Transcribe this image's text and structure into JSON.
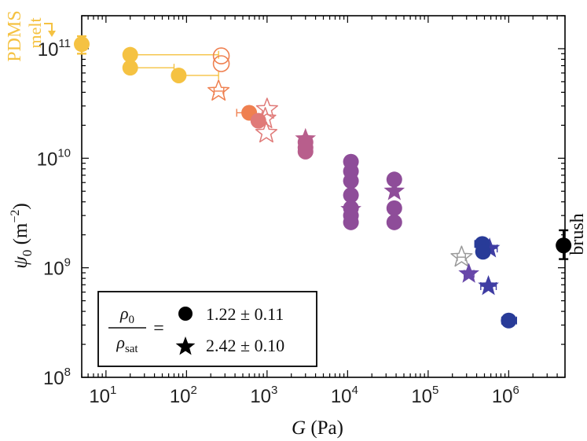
{
  "chart_data": {
    "type": "scatter",
    "x_scale": "log",
    "y_scale": "log",
    "xlim": [
      5,
      5000000
    ],
    "ylim": [
      100000000,
      200000000000
    ],
    "xlabel": {
      "var": "G",
      "unit": "(Pa)"
    },
    "ylabel": {
      "var": "ψ",
      "sub": "0",
      "unit": "(m",
      "exp": "−2",
      "close": ")"
    },
    "x_ticks": [
      {
        "base": "10",
        "exp": "1",
        "value": 10
      },
      {
        "base": "10",
        "exp": "2",
        "value": 100
      },
      {
        "base": "10",
        "exp": "3",
        "value": 1000
      },
      {
        "base": "10",
        "exp": "4",
        "value": 10000
      },
      {
        "base": "10",
        "exp": "5",
        "value": 100000
      },
      {
        "base": "10",
        "exp": "6",
        "value": 1000000
      }
    ],
    "y_ticks": [
      {
        "base": "10",
        "exp": "8",
        "value": 100000000
      },
      {
        "base": "10",
        "exp": "9",
        "value": 1000000000
      },
      {
        "base": "10",
        "exp": "10",
        "value": 10000000000
      },
      {
        "base": "10",
        "exp": "11",
        "value": 100000000000
      }
    ],
    "colors": {
      "gold": "#f5c242",
      "orange": "#ef8050",
      "salmon": "#e07a78",
      "mauve": "#b85e8c",
      "plum": "#8e4d99",
      "purple": "#6747a9",
      "indigo": "#3f3da3",
      "navy": "#283b98",
      "grey": "#999999",
      "black": "#000000"
    },
    "series": [
      {
        "name": "PDMS melt",
        "marker": "circle",
        "fill": true,
        "color": "gold",
        "points": [
          {
            "x": 5,
            "y": 110000000000,
            "yerr_lo": 90000000000,
            "yerr_hi": 130000000000
          }
        ]
      },
      {
        "name": "gold circles",
        "marker": "circle",
        "fill": true,
        "color": "gold",
        "points": [
          {
            "x": 20,
            "y": 88000000000,
            "xerr_hi": 250
          },
          {
            "x": 20,
            "y": 67000000000,
            "xerr_hi": 70
          },
          {
            "x": 80,
            "y": 57000000000,
            "xerr_hi": 250
          }
        ]
      },
      {
        "name": "open circles",
        "marker": "circle",
        "fill": false,
        "color": "orange",
        "points": [
          {
            "x": 270,
            "y": 86000000000
          },
          {
            "x": 270,
            "y": 73000000000
          }
        ]
      },
      {
        "name": "open star gold",
        "marker": "star",
        "fill": false,
        "color": "orange",
        "points": [
          {
            "x": 250,
            "y": 41000000000,
            "xerr_lo": 220,
            "xerr_hi": 290
          }
        ]
      },
      {
        "name": "orange circle",
        "marker": "circle",
        "fill": true,
        "color": "orange",
        "points": [
          {
            "x": 600,
            "y": 26000000000,
            "xerr_lo": 420,
            "xerr_hi": 650
          }
        ]
      },
      {
        "name": "salmon circles",
        "marker": "circle",
        "fill": true,
        "color": "salmon",
        "points": [
          {
            "x": 780,
            "y": 22000000000
          }
        ]
      },
      {
        "name": "salmon open stars",
        "marker": "star",
        "fill": false,
        "color": "salmon",
        "points": [
          {
            "x": 1000,
            "y": 28000000000
          },
          {
            "x": 950,
            "y": 23000000000
          },
          {
            "x": 980,
            "y": 17000000000
          }
        ]
      },
      {
        "name": "mauve circles",
        "marker": "circle",
        "fill": true,
        "color": "mauve",
        "points": [
          {
            "x": 3000,
            "y": 14000000000
          },
          {
            "x": 3000,
            "y": 12500000000
          },
          {
            "x": 3000,
            "y": 11500000000
          }
        ]
      },
      {
        "name": "mauve stars",
        "marker": "star",
        "fill": true,
        "color": "mauve",
        "points": [
          {
            "x": 3000,
            "y": 15000000000
          }
        ]
      },
      {
        "name": "plum circles",
        "marker": "circle",
        "fill": true,
        "color": "plum",
        "points": [
          {
            "x": 11000,
            "y": 9300000000
          },
          {
            "x": 11000,
            "y": 7600000000
          },
          {
            "x": 11000,
            "y": 6200000000
          },
          {
            "x": 11000,
            "y": 4600000000
          },
          {
            "x": 11000,
            "y": 3500000000
          },
          {
            "x": 11000,
            "y": 3000000000
          },
          {
            "x": 11000,
            "y": 2600000000
          },
          {
            "x": 38000,
            "y": 6400000000
          },
          {
            "x": 38000,
            "y": 3500000000
          },
          {
            "x": 38000,
            "y": 2600000000
          }
        ]
      },
      {
        "name": "plum stars",
        "marker": "star",
        "fill": true,
        "color": "plum",
        "points": [
          {
            "x": 11000,
            "y": 3400000000
          },
          {
            "x": 38000,
            "y": 5000000000
          }
        ]
      },
      {
        "name": "grey open star",
        "marker": "star",
        "fill": false,
        "color": "grey",
        "points": [
          {
            "x": 260000,
            "y": 1250000000,
            "xerr_lo": 230000,
            "xerr_hi": 290000
          }
        ]
      },
      {
        "name": "purple stars",
        "marker": "star",
        "fill": true,
        "color": "purple",
        "points": [
          {
            "x": 320000,
            "y": 880000000,
            "xerr_lo": 280000,
            "xerr_hi": 370000
          }
        ]
      },
      {
        "name": "indigo stars",
        "marker": "star",
        "fill": true,
        "color": "indigo",
        "points": [
          {
            "x": 580000,
            "y": 1500000000,
            "xerr_lo": 450000,
            "xerr_hi": 720000
          },
          {
            "x": 560000,
            "y": 680000000,
            "xerr_lo": 450000,
            "xerr_hi": 700000
          }
        ]
      },
      {
        "name": "navy circles",
        "marker": "circle",
        "fill": true,
        "color": "navy",
        "points": [
          {
            "x": 470000,
            "y": 1650000000,
            "xerr_lo": 380000,
            "xerr_hi": 560000
          },
          {
            "x": 480000,
            "y": 1400000000
          },
          {
            "x": 1000000,
            "y": 330000000,
            "xerr_lo": 820000,
            "xerr_hi": 1250000
          }
        ]
      },
      {
        "name": "brush",
        "marker": "circle",
        "fill": true,
        "color": "black",
        "points": [
          {
            "x": 4800000,
            "y": 1600000000,
            "yerr_lo": 1200000000,
            "yerr_hi": 2200000000
          }
        ]
      }
    ],
    "annotations": {
      "melt_line1": "PDMS",
      "melt_line2": "melt",
      "brush": "brush"
    },
    "legend": {
      "placement": "bottom-left",
      "ratio_num_var": "ρ",
      "ratio_num_sub": "0",
      "ratio_den_var": "ρ",
      "ratio_den_sub": "sat",
      "equals": "=",
      "entries": [
        {
          "marker": "circle",
          "label": "1.22 ± 0.11"
        },
        {
          "marker": "star",
          "label": "2.42 ± 0.10"
        }
      ]
    }
  }
}
